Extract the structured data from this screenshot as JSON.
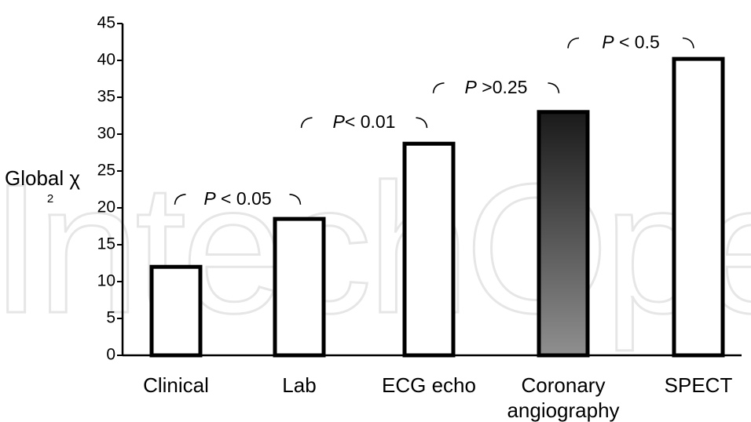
{
  "chart_data": {
    "type": "bar",
    "categories": [
      "Clinical",
      "Lab",
      "ECG echo",
      "Coronary angiography",
      "SPECT"
    ],
    "values": [
      12,
      18.5,
      28.7,
      33,
      40.2
    ],
    "ylabel": "Global χ",
    "ylabel_sup": "2",
    "ylim": [
      0,
      45
    ],
    "yticks": [
      0,
      5,
      10,
      15,
      20,
      25,
      30,
      35,
      40,
      45
    ],
    "grid": false,
    "bar_fills": [
      "#ffffff",
      "#ffffff",
      "#ffffff",
      "gradient",
      "#ffffff"
    ],
    "gradient_colors": [
      "#1a1a1a",
      "#8f8f8f"
    ],
    "annotations": [
      {
        "between": [
          0,
          1
        ],
        "p": "P",
        "text": " < 0.05",
        "at_value": 21.3
      },
      {
        "between": [
          1,
          2
        ],
        "p": "P",
        "text": "< 0.01",
        "at_value": 31.7
      },
      {
        "between": [
          2,
          3
        ],
        "p": "P",
        "text": " >0.25",
        "at_value": 36.4
      },
      {
        "between": [
          3,
          4
        ],
        "p": "P",
        "text": " < 0.5",
        "at_value": 42.5
      }
    ]
  },
  "watermark_text": "IntechOpen"
}
